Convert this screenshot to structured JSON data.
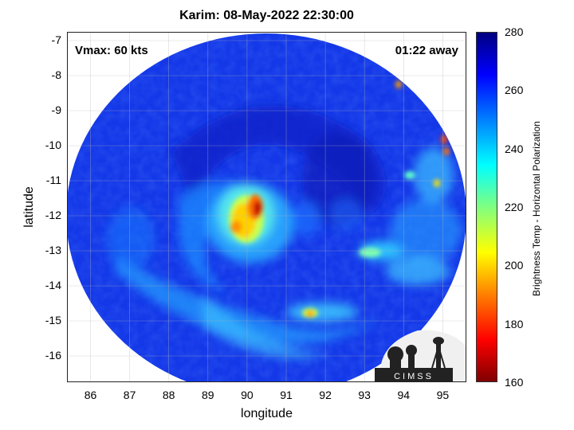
{
  "title": "Karim: 08-May-2022 22:30:00",
  "annotations": {
    "vmax": "Vmax: 60 kts",
    "away": "01:22 away"
  },
  "axes": {
    "xlabel": "longitude",
    "ylabel": "latitude",
    "xlim": [
      85.4,
      95.6
    ],
    "ylim": [
      -16.75,
      -6.75
    ],
    "xticks": [
      "86",
      "87",
      "88",
      "89",
      "90",
      "91",
      "92",
      "93",
      "94",
      "95"
    ],
    "yticks": [
      "-7",
      "-8",
      "-9",
      "-10",
      "-11",
      "-12",
      "-13",
      "-14",
      "-15",
      "-16"
    ],
    "grid": true
  },
  "colorbar": {
    "label": "Brightness Temp - Horizontal Polarization",
    "ticks": [
      "280",
      "260",
      "240",
      "220",
      "200",
      "180",
      "160"
    ],
    "range": [
      160,
      280
    ],
    "colormap": "jet"
  },
  "logo": {
    "text": "CIMSS"
  }
}
